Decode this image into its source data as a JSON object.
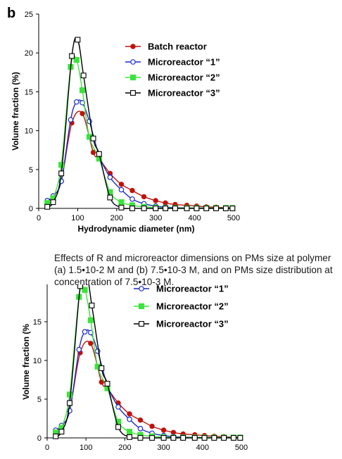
{
  "figure": {
    "panel_label": "b"
  },
  "caption": {
    "lines": [
      "Effects of R and microreactor dimensions on PMs size at polymer",
      "(a) 1.5•10-2 M and (b) 7.5•10-3 M, and on PMs size distribution at",
      "concentration of 7.5•10-3 M."
    ]
  },
  "chart_data": [
    {
      "type": "line",
      "xlabel": "Hydrodynamic diameter (nm)",
      "ylabel": "Volume fraction (%)",
      "xlim": [
        0,
        500
      ],
      "ylim": [
        0,
        25
      ],
      "xticks": [
        "0",
        "100",
        "200",
        "300",
        "400",
        "500"
      ],
      "yticks": [
        "0",
        "5",
        "10",
        "15",
        "20",
        "25"
      ],
      "grid": false,
      "legend_position": "top-right",
      "series": [
        {
          "name": "Batch reactor",
          "color": "#c0120c",
          "marker": "filled-circle",
          "x": [
            22,
            37,
            58,
            85,
            112,
            140,
            155,
            183,
            212,
            240,
            270,
            300,
            325,
            350,
            380,
            405,
            430,
            455,
            480,
            497
          ],
          "y": [
            0.8,
            1.5,
            3.5,
            11,
            12.2,
            7.2,
            6.4,
            4.5,
            3.1,
            2.3,
            1.5,
            1.0,
            0.7,
            0.5,
            0.4,
            0.3,
            0.2,
            0.15,
            0.1,
            0.1
          ]
        },
        {
          "name": "Microreactor “1”",
          "color": "#1a2bc4",
          "marker": "open-circle",
          "x": [
            22,
            37,
            58,
            82,
            97,
            112,
            130,
            155,
            183,
            212,
            240,
            270,
            300,
            325,
            350,
            380,
            405,
            430,
            455,
            480,
            497
          ],
          "y": [
            1.0,
            1.6,
            3.5,
            11.4,
            13.7,
            13.6,
            11.2,
            6.8,
            4.0,
            2.4,
            1.2,
            0.6,
            0.3,
            0.15,
            0.1,
            0.05,
            0.05,
            0.05,
            0.05,
            0.05,
            0.05
          ]
        },
        {
          "name": "Microreactor “2”",
          "color": "#3de33d",
          "marker": "filled-square",
          "x": [
            22,
            37,
            58,
            82,
            97,
            112,
            130,
            155,
            183,
            212,
            240,
            270,
            300,
            325,
            350,
            380,
            405,
            430,
            455,
            480,
            497
          ],
          "y": [
            0.7,
            1.3,
            5.6,
            18.2,
            19.1,
            15.2,
            9.2,
            6.4,
            2.1,
            0.8,
            0.4,
            0.2,
            0.1,
            0.05,
            0.05,
            0.05,
            0.05,
            0.05,
            0.05,
            0.05,
            0.05
          ]
        },
        {
          "name": "Microreactor “3”",
          "color": "#000000",
          "marker": "open-square",
          "x": [
            22,
            37,
            58,
            85,
            100,
            115,
            140,
            155,
            183,
            212,
            240,
            270,
            300,
            325,
            350,
            380,
            405,
            430,
            455,
            480,
            497
          ],
          "y": [
            0.2,
            0.8,
            4.5,
            19.6,
            21.7,
            17.1,
            9.0,
            7.0,
            1.4,
            0.1,
            0.0,
            0.0,
            0.0,
            0.0,
            0.0,
            0.0,
            0.0,
            0.0,
            0.0,
            0.0,
            0.0
          ]
        }
      ]
    },
    {
      "type": "line",
      "xlabel": "",
      "ylabel": "Volume fraction (%",
      "xlim": [
        0,
        500
      ],
      "ylim": [
        0,
        25
      ],
      "xticks": [
        "0",
        "100",
        "200",
        "300",
        "400",
        "500"
      ],
      "yticks": [
        "0",
        "5",
        "10",
        "15"
      ],
      "grid": false,
      "legend_position": "top-right",
      "legend_entries": [
        "Microreactor “1”",
        "Microreactor “2”",
        "Microreactor “3”"
      ],
      "series": [
        {
          "name": "Batch reactor",
          "color": "#c0120c",
          "marker": "filled-circle",
          "x": [
            22,
            37,
            58,
            85,
            112,
            140,
            155,
            183,
            212,
            240,
            270,
            300,
            325,
            350,
            380,
            405,
            430,
            455,
            480,
            497
          ],
          "y": [
            0.8,
            1.5,
            3.5,
            11,
            12.2,
            7.2,
            6.4,
            4.5,
            3.1,
            2.3,
            1.5,
            1.0,
            0.7,
            0.5,
            0.4,
            0.3,
            0.2,
            0.15,
            0.1,
            0.1
          ]
        },
        {
          "name": "Microreactor “1”",
          "color": "#1a2bc4",
          "marker": "open-circle",
          "x": [
            22,
            37,
            58,
            82,
            97,
            112,
            130,
            155,
            183,
            212,
            240,
            270,
            300,
            325,
            350,
            380,
            405,
            430,
            455,
            480,
            497
          ],
          "y": [
            1.0,
            1.6,
            3.5,
            11.4,
            13.7,
            13.6,
            11.2,
            6.8,
            4.0,
            2.4,
            1.2,
            0.6,
            0.3,
            0.15,
            0.1,
            0.05,
            0.05,
            0.05,
            0.05,
            0.05,
            0.05
          ]
        },
        {
          "name": "Microreactor “2”",
          "color": "#3de33d",
          "marker": "filled-square",
          "x": [
            22,
            37,
            58,
            82,
            97,
            112,
            130,
            155,
            183,
            212,
            240,
            270,
            300,
            325,
            350,
            380,
            405,
            430,
            455,
            480,
            497
          ],
          "y": [
            0.7,
            1.3,
            5.6,
            18.2,
            19.1,
            15.2,
            9.2,
            6.4,
            2.1,
            0.8,
            0.4,
            0.2,
            0.1,
            0.05,
            0.05,
            0.05,
            0.05,
            0.05,
            0.05,
            0.05,
            0.05
          ]
        },
        {
          "name": "Microreactor “3”",
          "color": "#000000",
          "marker": "open-square",
          "x": [
            22,
            37,
            58,
            85,
            100,
            115,
            140,
            155,
            183,
            212,
            240,
            270,
            300,
            325,
            350,
            380,
            405,
            430,
            455,
            480,
            497
          ],
          "y": [
            0.2,
            0.8,
            4.5,
            19.6,
            21.7,
            17.1,
            9.0,
            7.0,
            1.4,
            0.1,
            0.0,
            0.0,
            0.0,
            0.0,
            0.0,
            0.0,
            0.0,
            0.0,
            0.0,
            0.0,
            0.0
          ]
        }
      ]
    }
  ]
}
